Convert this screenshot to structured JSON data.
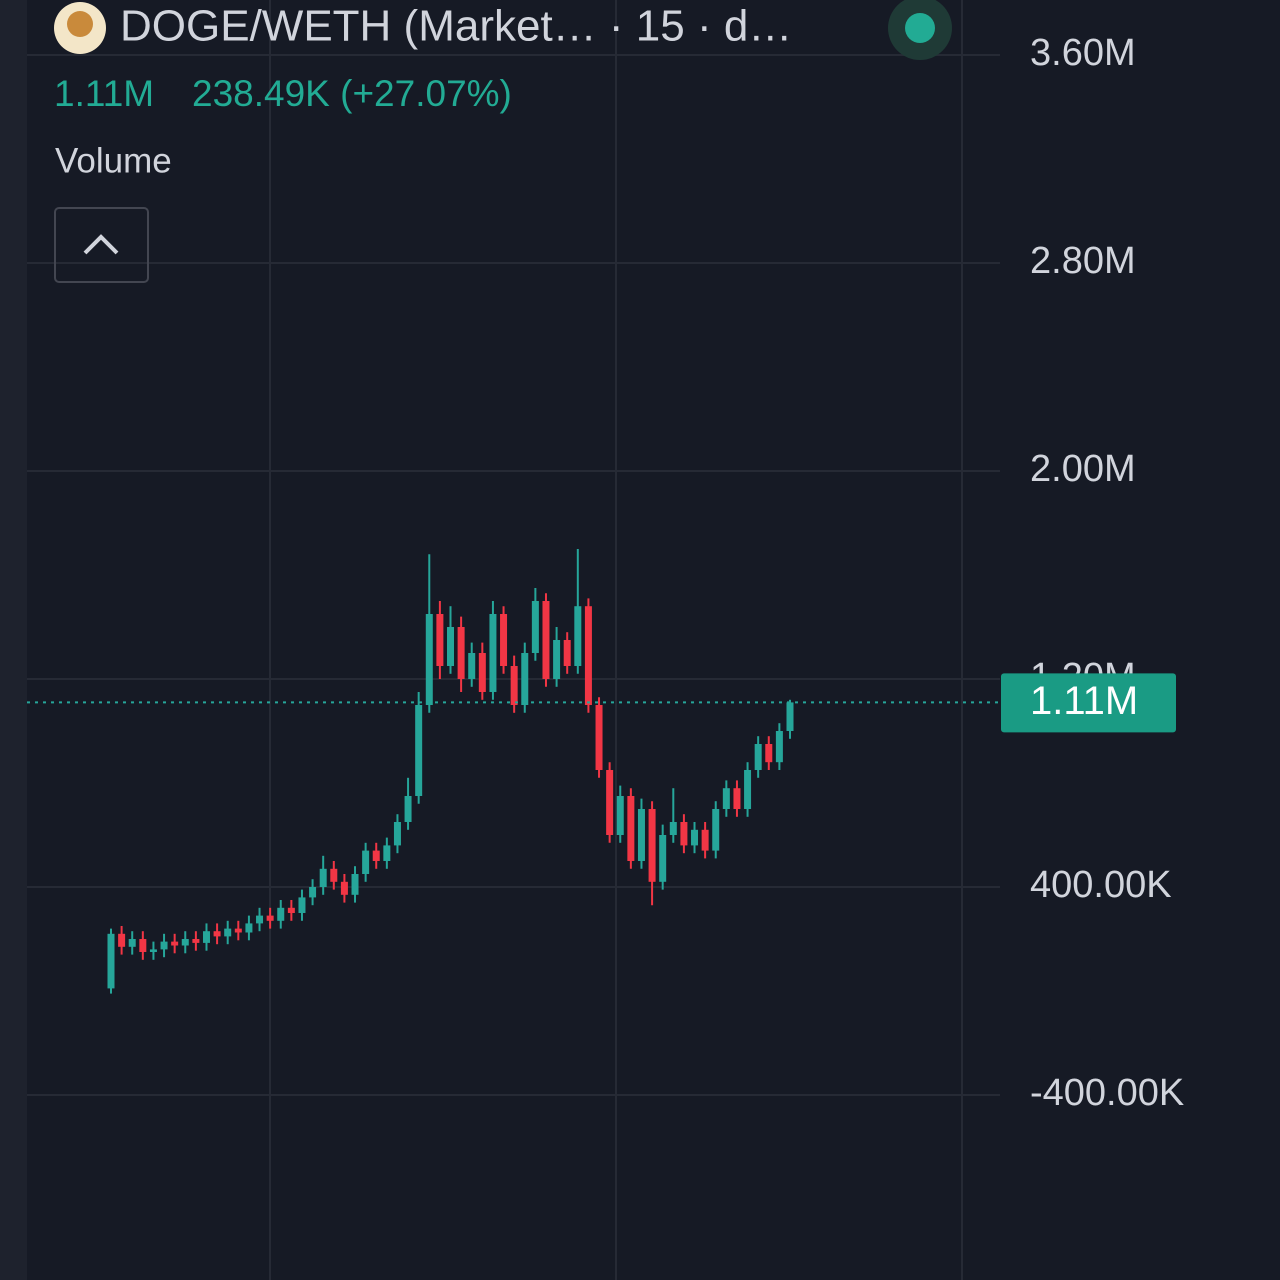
{
  "header": {
    "title": "DOGE/WETH (Market… · 15 · d…",
    "price": "1.11M",
    "change": "238.49K (+27.07%)",
    "indicator": "Volume"
  },
  "chart_data": {
    "type": "candlestick",
    "open": [
      10000,
      220000,
      170000,
      200000,
      150000,
      160000,
      190000,
      175000,
      200000,
      185000,
      230000,
      210000,
      240000,
      225000,
      260000,
      290000,
      270000,
      320000,
      300000,
      360000,
      400000,
      470000,
      420000,
      370000,
      450000,
      540000,
      500000,
      560000,
      650000,
      750000,
      1100000,
      1450000,
      1250000,
      1400000,
      1200000,
      1300000,
      1150000,
      1450000,
      1250000,
      1100000,
      1300000,
      1500000,
      1200000,
      1350000,
      1250000,
      1480000,
      1100000,
      850000,
      600000,
      750000,
      500000,
      700000,
      420000,
      600000,
      650000,
      560000,
      620000,
      540000,
      700000,
      780000,
      700000,
      850000,
      950000,
      880000,
      1000000
    ],
    "high": [
      240000,
      250000,
      230000,
      230000,
      190000,
      220000,
      220000,
      230000,
      230000,
      260000,
      260000,
      270000,
      270000,
      290000,
      320000,
      320000,
      350000,
      350000,
      390000,
      430000,
      520000,
      500000,
      450000,
      480000,
      570000,
      570000,
      590000,
      680000,
      820000,
      1150000,
      1680000,
      1500000,
      1480000,
      1440000,
      1340000,
      1340000,
      1500000,
      1480000,
      1290000,
      1340000,
      1550000,
      1530000,
      1400000,
      1380000,
      1700000,
      1510000,
      1130000,
      880000,
      790000,
      780000,
      740000,
      730000,
      640000,
      780000,
      680000,
      650000,
      650000,
      730000,
      810000,
      810000,
      880000,
      980000,
      980000,
      1030000,
      1120000
    ],
    "low": [
      -10000,
      140000,
      140000,
      120000,
      120000,
      130000,
      145000,
      145000,
      155000,
      155000,
      180000,
      180000,
      195000,
      195000,
      230000,
      240000,
      240000,
      270000,
      270000,
      330000,
      370000,
      390000,
      340000,
      340000,
      420000,
      470000,
      470000,
      530000,
      620000,
      720000,
      1070000,
      1200000,
      1220000,
      1150000,
      1170000,
      1120000,
      1120000,
      1220000,
      1070000,
      1070000,
      1270000,
      1170000,
      1170000,
      1220000,
      1220000,
      1070000,
      820000,
      570000,
      570000,
      470000,
      470000,
      330000,
      390000,
      570000,
      530000,
      530000,
      510000,
      510000,
      670000,
      670000,
      670000,
      820000,
      850000,
      850000,
      970000
    ],
    "close": [
      220000,
      170000,
      200000,
      150000,
      160000,
      190000,
      175000,
      200000,
      185000,
      230000,
      210000,
      240000,
      225000,
      260000,
      290000,
      270000,
      320000,
      300000,
      360000,
      400000,
      470000,
      420000,
      370000,
      450000,
      540000,
      500000,
      560000,
      650000,
      750000,
      1100000,
      1450000,
      1250000,
      1400000,
      1200000,
      1300000,
      1150000,
      1450000,
      1250000,
      1100000,
      1300000,
      1500000,
      1200000,
      1350000,
      1250000,
      1480000,
      1100000,
      850000,
      600000,
      750000,
      500000,
      700000,
      420000,
      600000,
      650000,
      560000,
      620000,
      540000,
      700000,
      780000,
      700000,
      850000,
      950000,
      880000,
      1000000,
      1110000
    ],
    "colors": {
      "up": "#26a69a",
      "down": "#f23645"
    },
    "ylim": [
      -1111500,
      3811500
    ],
    "yticks": [
      {
        "value": 3600000,
        "label": "3.60M"
      },
      {
        "value": 2800000,
        "label": "2.80M"
      },
      {
        "value": 2000000,
        "label": "2.00M"
      },
      {
        "value": 1200000,
        "label": "1.20M"
      },
      {
        "value": 400000,
        "label": "400.00K"
      },
      {
        "value": -400000,
        "label": "-400.00K"
      }
    ],
    "last_price": {
      "value": 1110000,
      "label": "1.11M"
    },
    "grid": true
  }
}
